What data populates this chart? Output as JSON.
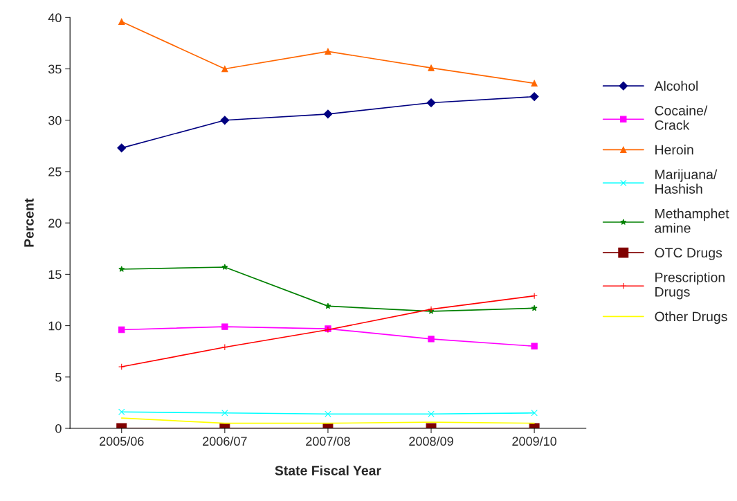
{
  "chart_data": {
    "type": "line",
    "xlabel": "State Fiscal Year",
    "ylabel": "Percent",
    "categories": [
      "2005/06",
      "2006/07",
      "2007/08",
      "2008/09",
      "2009/10"
    ],
    "ylim": [
      0,
      40
    ],
    "yticks": [
      0,
      5,
      10,
      15,
      20,
      25,
      30,
      35,
      40
    ],
    "grid": false,
    "legend": "right",
    "series": [
      {
        "name": "Alcohol",
        "color": "#000080",
        "marker": "diamond",
        "values": [
          27.3,
          30.0,
          30.6,
          31.7,
          32.3
        ]
      },
      {
        "name": "Cocaine/\nCrack",
        "color": "#ff00ff",
        "marker": "square",
        "values": [
          9.6,
          9.9,
          9.7,
          8.7,
          8.0
        ]
      },
      {
        "name": "Heroin",
        "color": "#ff6600",
        "marker": "triangle",
        "values": [
          39.6,
          35.0,
          36.7,
          35.1,
          33.6
        ]
      },
      {
        "name": "Marijuana/\nHashish",
        "color": "#00ffff",
        "marker": "cross",
        "values": [
          1.6,
          1.5,
          1.4,
          1.4,
          1.5
        ]
      },
      {
        "name": "Methamphet\namine",
        "color": "#008000",
        "marker": "star",
        "values": [
          15.5,
          15.7,
          11.9,
          11.4,
          11.7
        ]
      },
      {
        "name": "OTC Drugs",
        "color": "#800000",
        "marker": "square",
        "values": [
          0,
          0,
          0,
          0,
          0
        ]
      },
      {
        "name": "Prescription\nDrugs",
        "color": "#ff0000",
        "marker": "plus",
        "values": [
          6.0,
          7.9,
          9.6,
          11.6,
          12.9
        ]
      },
      {
        "name": "Other Drugs",
        "color": "#ffff00",
        "marker": "none",
        "values": [
          1.0,
          0.5,
          0.5,
          0.6,
          0.5
        ]
      }
    ]
  }
}
